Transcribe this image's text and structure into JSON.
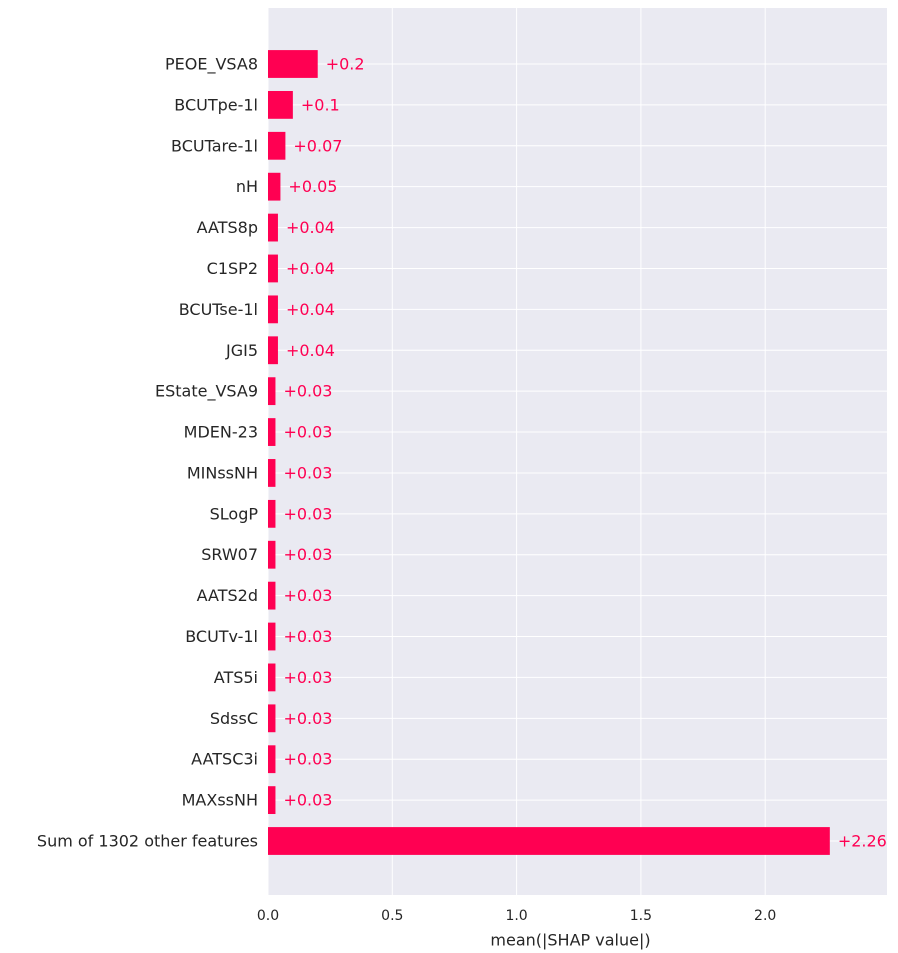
{
  "chart_data": {
    "type": "bar",
    "orientation": "horizontal",
    "xlabel": "mean(|SHAP value|)",
    "xlim": [
      0,
      2.49
    ],
    "xticks": [
      0.0,
      0.5,
      1.0,
      1.5,
      2.0
    ],
    "xtick_labels": [
      "0.0",
      "0.5",
      "1.0",
      "1.5",
      "2.0"
    ],
    "grid": true,
    "bar_color": "#ff0052",
    "label_color": "#ff0052",
    "background": "#eaeaf2",
    "categories": [
      "PEOE_VSA8",
      "BCUTpe-1l",
      "BCUTare-1l",
      "nH",
      "AATS8p",
      "C1SP2",
      "BCUTse-1l",
      "JGI5",
      "EState_VSA9",
      "MDEN-23",
      "MINssNH",
      "SLogP",
      "SRW07",
      "AATS2d",
      "BCUTv-1l",
      "ATS5i",
      "SdssC",
      "AATSC3i",
      "MAXssNH",
      "Sum of 1302 other features"
    ],
    "values": [
      0.2,
      0.1,
      0.07,
      0.05,
      0.04,
      0.04,
      0.04,
      0.04,
      0.03,
      0.03,
      0.03,
      0.03,
      0.03,
      0.03,
      0.03,
      0.03,
      0.03,
      0.03,
      0.03,
      2.26
    ],
    "value_labels": [
      "+0.2",
      "+0.1",
      "+0.07",
      "+0.05",
      "+0.04",
      "+0.04",
      "+0.04",
      "+0.04",
      "+0.03",
      "+0.03",
      "+0.03",
      "+0.03",
      "+0.03",
      "+0.03",
      "+0.03",
      "+0.03",
      "+0.03",
      "+0.03",
      "+0.03",
      "+2.26"
    ]
  }
}
